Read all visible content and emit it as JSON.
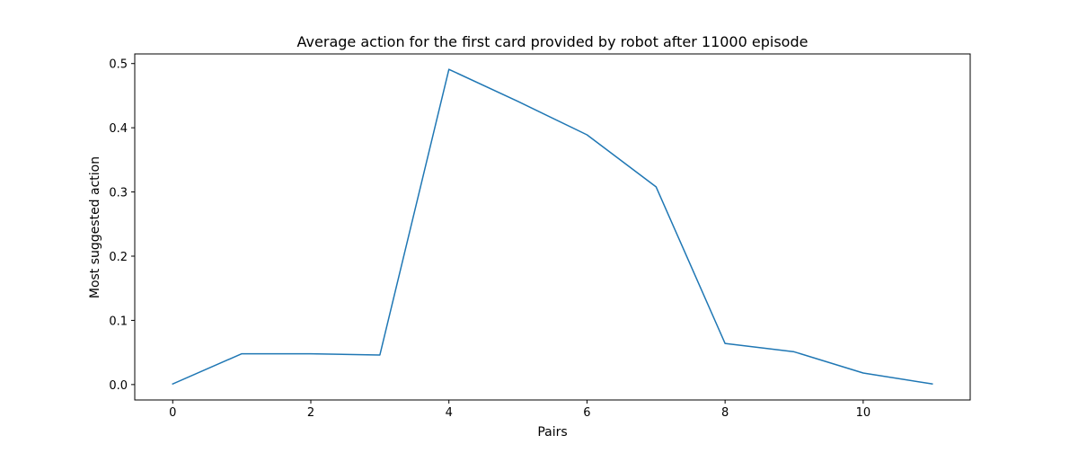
{
  "chart_data": {
    "type": "line",
    "title": "Average action for the first card provided by robot after 11000 episode",
    "xlabel": "Pairs",
    "ylabel": "Most suggested action",
    "xlim": [
      -0.55,
      11.55
    ],
    "ylim": [
      -0.024,
      0.515
    ],
    "xticks": [
      0,
      2,
      4,
      6,
      8,
      10
    ],
    "xtick_labels": [
      "0",
      "2",
      "4",
      "6",
      "8",
      "10"
    ],
    "yticks": [
      0.0,
      0.1,
      0.2,
      0.3,
      0.4,
      0.5
    ],
    "ytick_labels": [
      "0.0",
      "0.1",
      "0.2",
      "0.3",
      "0.4",
      "0.5"
    ],
    "grid": false,
    "series": [
      {
        "color": "#1f77b4",
        "x": [
          0,
          1,
          2,
          3,
          4,
          5,
          6,
          7,
          8,
          9,
          10,
          11
        ],
        "y": [
          0.001,
          0.048,
          0.048,
          0.046,
          0.491,
          0.441,
          0.389,
          0.308,
          0.064,
          0.051,
          0.018,
          0.001
        ]
      }
    ]
  }
}
